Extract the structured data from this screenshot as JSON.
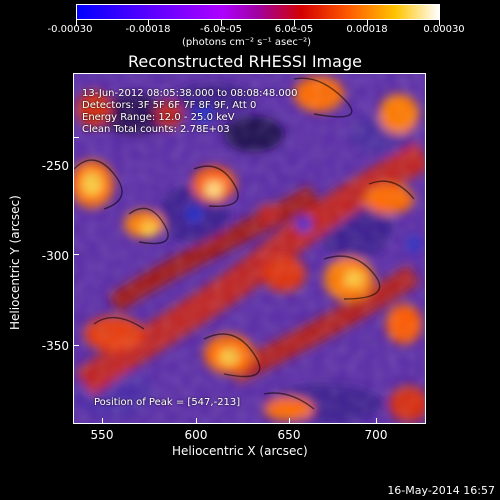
{
  "colorbar": {
    "tick_labels": [
      "-0.00030",
      "-0.00018",
      "-6.0e-05",
      "6.0e-05",
      "0.00018",
      "0.00030"
    ],
    "units": "(photons cm⁻² s⁻¹ asec⁻²)",
    "colors": [
      "#0000ff",
      "#5a00ff",
      "#ad00ff",
      "#a000a0",
      "#d20000",
      "#ff5a00",
      "#ffc400",
      "#ffffff"
    ]
  },
  "title": "Reconstructed RHESSI Image",
  "info": {
    "time_range": "13-Jun-2012 08:05:38.000 to 08:08:48.000",
    "detectors": "Detectors: 3F 5F 6F 7F 8F 9F, Att 0",
    "energy": "Energy Range: 12.0 - 25.0 keV",
    "clean": "Clean     Total counts: 2.78E+03",
    "peak": "Position of Peak = [547,-213]"
  },
  "axes": {
    "xlabel": "Heliocentric X (arcsec)",
    "ylabel": "Heliocentric Y (arcsec)",
    "xticks": [
      "550",
      "600",
      "650",
      "700"
    ],
    "yticks": [
      "-250",
      "-300",
      "-350"
    ]
  },
  "timestamp": "16-May-2014 16:57"
}
